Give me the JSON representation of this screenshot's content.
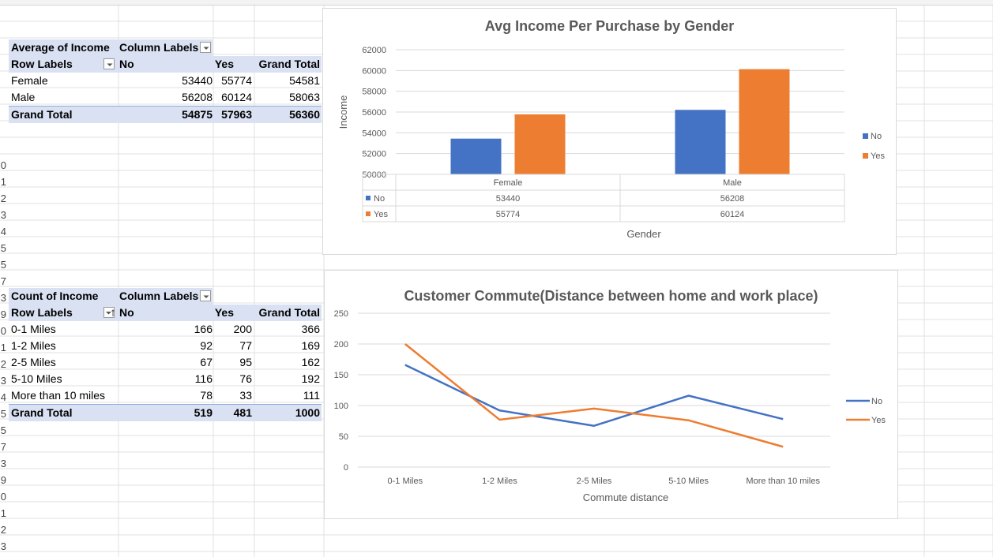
{
  "pivot1": {
    "title": "Average of Income",
    "column_labels": "Column Labels",
    "row_labels": "Row Labels",
    "col_no": "No",
    "col_yes": "Yes",
    "col_total": "Grand Total",
    "rows": [
      {
        "label": "Female",
        "no": "53440",
        "yes": "55774",
        "total": "54581"
      },
      {
        "label": "Male",
        "no": "56208",
        "yes": "60124",
        "total": "58063"
      }
    ],
    "grand": {
      "label": "Grand Total",
      "no": "54875",
      "yes": "57963",
      "total": "56360"
    }
  },
  "pivot2": {
    "title": "Count of Income",
    "column_labels": "Column Labels",
    "row_labels": "Row Labels",
    "col_no": "No",
    "col_yes": "Yes",
    "col_total": "Grand Total",
    "rows": [
      {
        "label": "0-1 Miles",
        "no": "166",
        "yes": "200",
        "total": "366"
      },
      {
        "label": "1-2 Miles",
        "no": "92",
        "yes": "77",
        "total": "169"
      },
      {
        "label": "2-5 Miles",
        "no": "67",
        "yes": "95",
        "total": "162"
      },
      {
        "label": "5-10 Miles",
        "no": "116",
        "yes": "76",
        "total": "192"
      },
      {
        "label": "More than 10 miles",
        "no": "78",
        "yes": "33",
        "total": "111"
      }
    ],
    "grand": {
      "label": "Grand Total",
      "no": "519",
      "yes": "481",
      "total": "1000"
    }
  },
  "row_numbers": [
    "0",
    "1",
    "2",
    "3",
    "4",
    "5",
    "5",
    "7",
    "3",
    "9",
    "0",
    "1",
    "2",
    "3",
    "4",
    "5",
    "5",
    "7",
    "3",
    "9",
    "0",
    "1",
    "2",
    "3"
  ],
  "colors": {
    "no": "#4472c4",
    "yes": "#ed7d31",
    "header_fill": "#d9e1f2"
  },
  "chart_data": [
    {
      "type": "bar",
      "title": "Avg Income Per Purchase by Gender",
      "xlabel": "Gender",
      "ylabel": "Income",
      "categories": [
        "Female",
        "Male"
      ],
      "series": [
        {
          "name": "No",
          "values": [
            53440,
            56208
          ]
        },
        {
          "name": "Yes",
          "values": [
            55774,
            60124
          ]
        }
      ],
      "ylim": [
        50000,
        62000
      ],
      "yticks": [
        50000,
        52000,
        54000,
        56000,
        58000,
        60000,
        62000
      ],
      "data_table": true,
      "legend": "right",
      "grid": true
    },
    {
      "type": "line",
      "title": "Customer Commute(Distance between home and work place)",
      "xlabel": "Commute distance",
      "ylabel": "",
      "categories": [
        "0-1 Miles",
        "1-2 Miles",
        "2-5 Miles",
        "5-10 Miles",
        "More than 10 miles"
      ],
      "series": [
        {
          "name": "No",
          "values": [
            166,
            92,
            67,
            116,
            78
          ]
        },
        {
          "name": "Yes",
          "values": [
            200,
            77,
            95,
            76,
            33
          ]
        }
      ],
      "ylim": [
        0,
        250
      ],
      "yticks": [
        0,
        50,
        100,
        150,
        200,
        250
      ],
      "legend": "right",
      "grid": true
    }
  ]
}
